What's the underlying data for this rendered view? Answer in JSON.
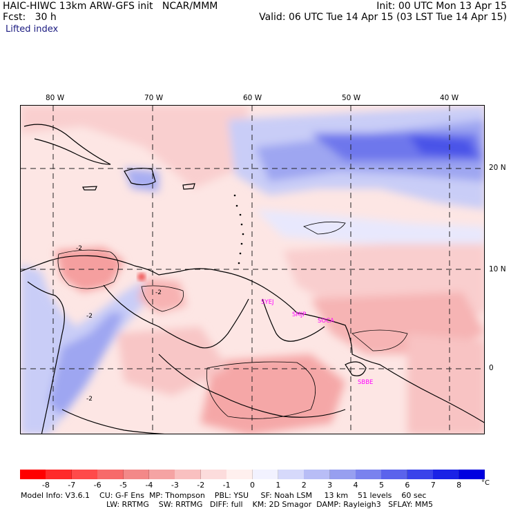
{
  "header": {
    "title": "HAIC-HIWC 13km ARW-GFS init   NCAR/MMM",
    "init": "Init: 00 UTC Mon 13 Apr 15",
    "fcst": "Fcst:   30 h",
    "valid": "Valid: 06 UTC Tue 14 Apr 15 (03 LST Tue 14 Apr 15)",
    "field": "Lifted index"
  },
  "map": {
    "lon_labels": [
      "80 W",
      "70 W",
      "60 W",
      "50 W",
      "40 W"
    ],
    "lat_labels": [
      "20 N",
      "10 N",
      "0"
    ],
    "sites": [
      "SYEJ",
      "SMJP",
      "SOCA",
      "SBBE"
    ],
    "contour_labels": [
      "-2",
      "-2",
      "-2",
      "-2"
    ]
  },
  "colorbar": {
    "ticks": [
      "-8",
      "-7",
      "-6",
      "-5",
      "-4",
      "-3",
      "-2",
      "-1",
      "0",
      "1",
      "2",
      "3",
      "4",
      "5",
      "6",
      "7",
      "8"
    ],
    "unit": "°C",
    "colors": [
      "#ff0000",
      "#ff2a2a",
      "#ff4a4a",
      "#f76a6a",
      "#f38888",
      "#f5a3a3",
      "#f9c0c0",
      "#fcdcdc",
      "#fff0ee",
      "#f2f2ff",
      "#d6d9fb",
      "#b8bdf6",
      "#979ff0",
      "#7a82ee",
      "#5b63ec",
      "#3a43ea",
      "#1a22e6",
      "#0000e0"
    ]
  },
  "footer": {
    "line1": "Model Info: V3.6.1    CU: G-F Ens  MP: Thompson    PBL: YSU     SF: Noah LSM     13 km    51 levels    60 sec",
    "line2": "LW: RRTMG    SW: RRTMG   DIFF: full    KM: 2D Smagor  DAMP: Rayleigh3   SFLAY: MM5"
  }
}
